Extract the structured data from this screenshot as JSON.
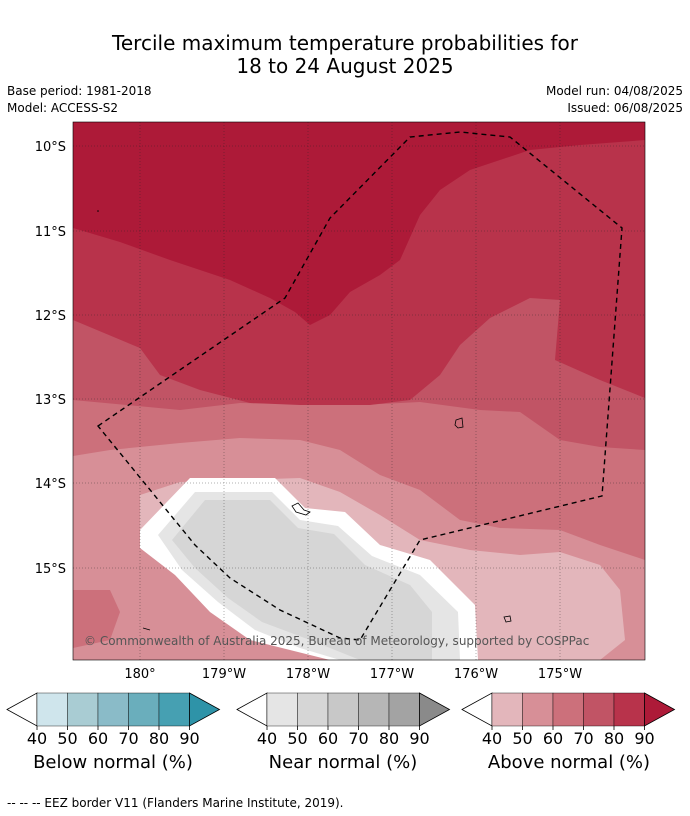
{
  "header": {
    "title_line1": "Tercile maximum temperature probabilities for",
    "title_line2": "18 to 24 August 2025",
    "base_period": "Base period: 1981-2018",
    "model": "Model: ACCESS-S2",
    "model_run": "Model run: 04/08/2025",
    "issued": "Issued: 06/08/2025"
  },
  "map": {
    "lat_labels": [
      "10°S",
      "11°S",
      "12°S",
      "13°S",
      "14°S",
      "15°S"
    ],
    "lon_labels": [
      "180°",
      "179°W",
      "178°W",
      "177°W",
      "176°W",
      "175°W"
    ],
    "copyright": "© Commonwealth of Australia 2025, Bureau of Meteorology, supported by COSPPac"
  },
  "legends": [
    {
      "label": "Below normal (%)",
      "ticks": [
        "40",
        "50",
        "60",
        "70",
        "80",
        "90"
      ],
      "colors": [
        "#ffffff",
        "#cfe5ec",
        "#a9ccd3",
        "#8abbc8",
        "#6aaebc",
        "#46a0b2",
        "#2e93a8"
      ]
    },
    {
      "label": "Near normal (%)",
      "ticks": [
        "40",
        "50",
        "60",
        "70",
        "80",
        "90"
      ],
      "colors": [
        "#ffffff",
        "#e5e5e5",
        "#d6d6d6",
        "#c8c8c8",
        "#b6b6b6",
        "#a3a3a3",
        "#8a8a8a"
      ]
    },
    {
      "label": "Above normal (%)",
      "ticks": [
        "40",
        "50",
        "60",
        "70",
        "80",
        "90"
      ],
      "colors": [
        "#ffffff",
        "#e3b6bb",
        "#d78f97",
        "#cc707b",
        "#c15465",
        "#b8334b",
        "#ad1a38"
      ]
    }
  ],
  "footnote": "--  --  -- EEZ border V11 (Flanders Marine Institute, 2019)."
}
